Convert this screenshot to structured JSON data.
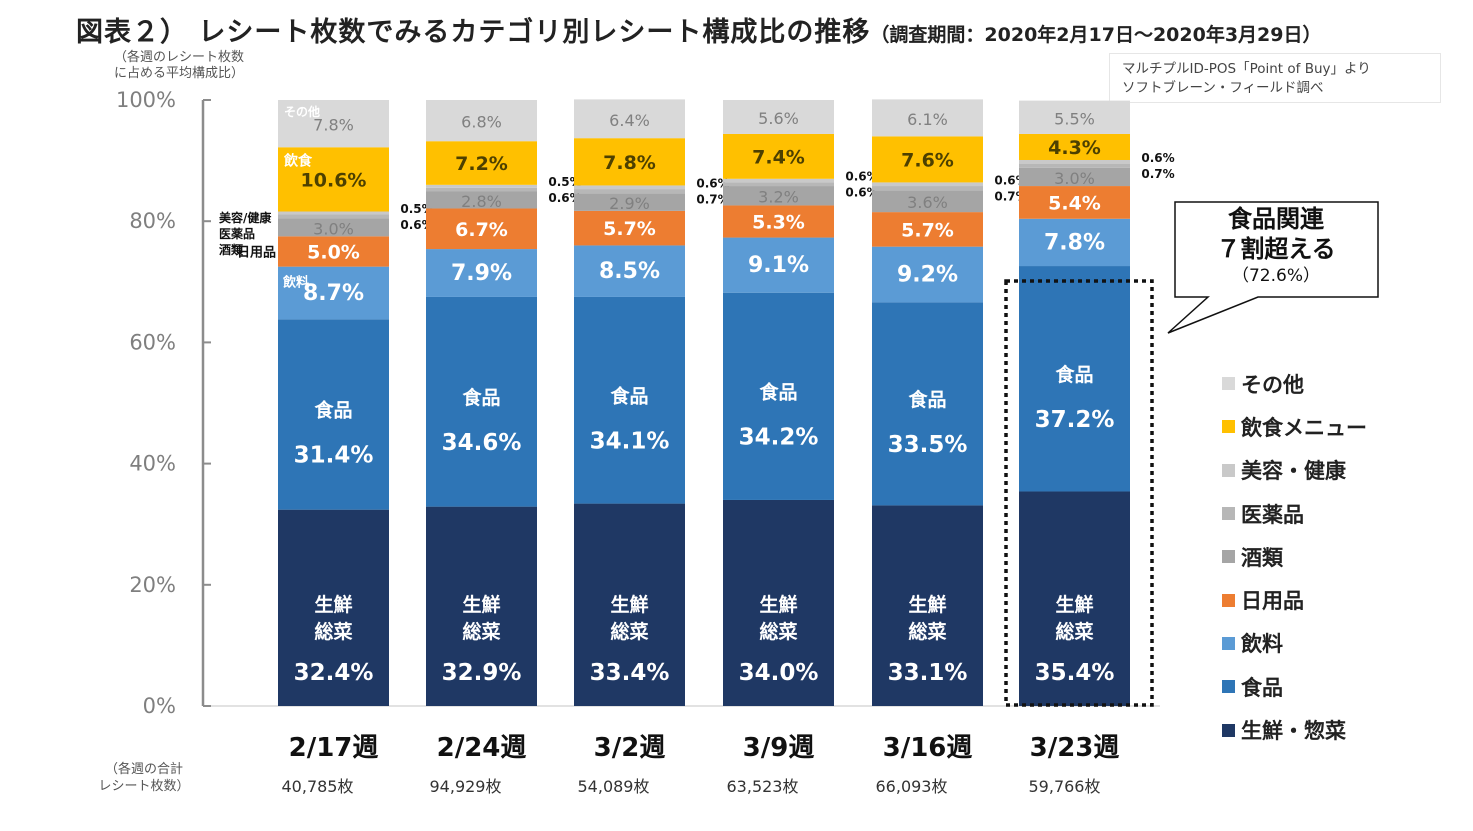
{
  "title": {
    "main": "図表２） レシート枚数でみるカテゴリ別レシート構成比の推移",
    "period": "（調査期間：2020年2月17日～2020年3月29日）"
  },
  "y_axis_note": [
    "（各週のレシート枚数",
    "に占める平均構成比）"
  ],
  "source_note": [
    "マルチプルID-POS「Point of Buy」より",
    "ソフトブレーン・フィールド調べ"
  ],
  "receipt_note": [
    "（各週の合計",
    "レシート枚数）"
  ],
  "callout": {
    "line1": "食品関連",
    "line2": "７割超える",
    "line3": "（72.6%）"
  },
  "in_bar_labels": {
    "fresh": [
      "生鮮",
      "総菜"
    ],
    "food": "食品",
    "drink": "飲料",
    "daily": "日用品",
    "dining": "飲食",
    "other": "その他",
    "left_small": [
      "美容/健康",
      "医薬品",
      "酒類"
    ]
  },
  "chart_data": {
    "type": "bar",
    "stacked": true,
    "title": "レシート枚数でみるカテゴリ別レシート構成比の推移",
    "xlabel": "",
    "ylabel": "各週のレシート枚数に占める平均構成比",
    "ylim": [
      0,
      100
    ],
    "yticks": [
      "0%",
      "20%",
      "40%",
      "60%",
      "80%",
      "100%"
    ],
    "grid": false,
    "legend_position": "right",
    "categories": [
      "2/17週",
      "2/24週",
      "3/2週",
      "3/9週",
      "3/16週",
      "3/23週"
    ],
    "receipt_counts": [
      "40,785枚",
      "94,929枚",
      "54,089枚",
      "63,523枚",
      "66,093枚",
      "59,766枚"
    ],
    "series": [
      {
        "name": "生鮮・惣菜",
        "color": "#1f3864",
        "values": [
          32.4,
          32.9,
          33.4,
          34.0,
          33.1,
          35.4
        ]
      },
      {
        "name": "食品",
        "color": "#2e75b6",
        "values": [
          31.4,
          34.6,
          34.1,
          34.2,
          33.5,
          37.2
        ]
      },
      {
        "name": "飲料",
        "color": "#5b9bd5",
        "values": [
          8.7,
          7.9,
          8.5,
          9.1,
          9.2,
          7.8
        ]
      },
      {
        "name": "日用品",
        "color": "#ed7d31",
        "values": [
          5.0,
          6.7,
          5.7,
          5.3,
          5.7,
          5.4
        ]
      },
      {
        "name": "酒類",
        "color": "#a5a5a5",
        "values": [
          3.0,
          2.8,
          2.9,
          3.2,
          3.6,
          3.0
        ]
      },
      {
        "name": "医薬品",
        "color": "#b7b7b7",
        "values": [
          0.6,
          0.6,
          0.7,
          0.6,
          0.7,
          0.7
        ]
      },
      {
        "name": "美容・健康",
        "color": "#c9c9c9",
        "values": [
          0.5,
          0.5,
          0.6,
          0.6,
          0.6,
          0.6
        ]
      },
      {
        "name": "飲食メニュー",
        "color": "#ffc000",
        "values": [
          10.6,
          7.2,
          7.8,
          7.4,
          7.6,
          4.3
        ]
      },
      {
        "name": "その他",
        "color": "#d9d9d9",
        "values": [
          7.8,
          6.8,
          6.4,
          5.6,
          6.1,
          5.5
        ]
      }
    ],
    "legend": [
      "その他",
      "飲食メニュー",
      "美容・健康",
      "医薬品",
      "酒類",
      "日用品",
      "飲料",
      "食品",
      "生鮮・惣菜"
    ],
    "annotation": {
      "text": "食品関連７割超える（72.6%）",
      "target": "3/23週"
    }
  }
}
